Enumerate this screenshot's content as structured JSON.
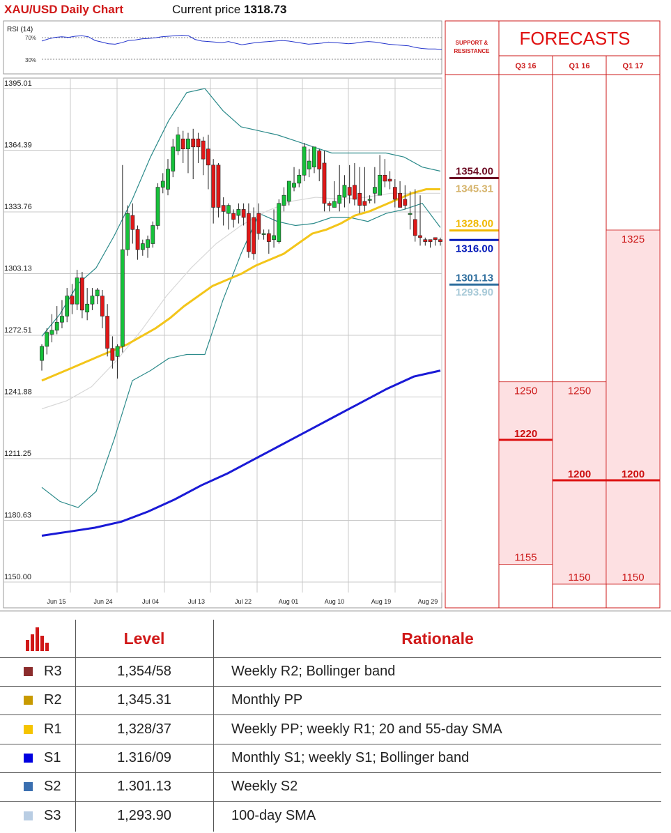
{
  "header": {
    "title": "XAU/USD Daily Chart",
    "price_label": "Current price",
    "price_value": "1318.73"
  },
  "rsi": {
    "label": "RSI (14)",
    "upper_label": "70%",
    "lower_label": "30%",
    "values": [
      62,
      66,
      69,
      70,
      69,
      71,
      72,
      70,
      63,
      60,
      57,
      56,
      59,
      63,
      64,
      66,
      67,
      68,
      70,
      71,
      72,
      73,
      72,
      65,
      62,
      61,
      60,
      59,
      61,
      58,
      55,
      57,
      59,
      60,
      61,
      62,
      63,
      62,
      60,
      58,
      56,
      57,
      58,
      60,
      59,
      58,
      57,
      58,
      60,
      61,
      60,
      58,
      56,
      55,
      54,
      53,
      50,
      48,
      47,
      47,
      46
    ]
  },
  "chart_data": {
    "type": "candlestick",
    "ylim": [
      1150,
      1395
    ],
    "yticks": [
      "1395.01",
      "1364.39",
      "1333.76",
      "1303.13",
      "1272.51",
      "1241.88",
      "1211.25",
      "1180.63",
      "1150.00"
    ],
    "xticks": [
      "Jun 15",
      "Jun 24",
      "Jul 04",
      "Jul 13",
      "Jul 22",
      "Aug 01",
      "Aug 10",
      "Aug 19",
      "Aug 29"
    ],
    "candles": [
      [
        1260,
        1267,
        1255,
        1268
      ],
      [
        1267,
        1274,
        1263,
        1276
      ],
      [
        1273,
        1275,
        1269,
        1283
      ],
      [
        1275,
        1279,
        1273,
        1287
      ],
      [
        1279,
        1282,
        1276,
        1290
      ],
      [
        1282,
        1292,
        1279,
        1296
      ],
      [
        1292,
        1288,
        1283,
        1298
      ],
      [
        1288,
        1301,
        1285,
        1305
      ],
      [
        1301,
        1285,
        1281,
        1304
      ],
      [
        1284,
        1288,
        1280,
        1296
      ],
      [
        1288,
        1292,
        1285,
        1296
      ],
      [
        1292,
        1295,
        1288,
        1296
      ],
      [
        1292,
        1282,
        1276,
        1295
      ],
      [
        1282,
        1266,
        1262,
        1288
      ],
      [
        1266,
        1260,
        1256,
        1272
      ],
      [
        1262,
        1267,
        1251,
        1268
      ],
      [
        1267,
        1315,
        1264,
        1357
      ],
      [
        1315,
        1333,
        1312,
        1337
      ],
      [
        1332,
        1325,
        1318,
        1338
      ],
      [
        1325,
        1315,
        1310,
        1327
      ],
      [
        1315,
        1318,
        1312,
        1320
      ],
      [
        1316,
        1320,
        1311,
        1322
      ],
      [
        1318,
        1327,
        1316,
        1329
      ],
      [
        1327,
        1346,
        1325,
        1348
      ],
      [
        1346,
        1349,
        1343,
        1353
      ],
      [
        1345,
        1355,
        1342,
        1360
      ],
      [
        1354,
        1366,
        1351,
        1370
      ],
      [
        1364,
        1372,
        1362,
        1376
      ],
      [
        1370,
        1365,
        1358,
        1374
      ],
      [
        1365,
        1370,
        1353,
        1373
      ],
      [
        1370,
        1366,
        1350,
        1375
      ],
      [
        1370,
        1366,
        1358,
        1373
      ],
      [
        1369,
        1360,
        1352,
        1371
      ],
      [
        1365,
        1357,
        1345,
        1372
      ],
      [
        1357,
        1336,
        1328,
        1360
      ],
      [
        1357,
        1336,
        1331,
        1358
      ],
      [
        1337,
        1334,
        1327,
        1341
      ],
      [
        1333,
        1337,
        1325,
        1338
      ],
      [
        1333,
        1330,
        1326,
        1335
      ],
      [
        1332,
        1335,
        1328,
        1338
      ],
      [
        1335,
        1331,
        1327,
        1338
      ],
      [
        1333,
        1314,
        1311,
        1338
      ],
      [
        1331,
        1313,
        1310,
        1336
      ],
      [
        1333,
        1323,
        1320,
        1338
      ],
      [
        1323,
        1323,
        1320,
        1325
      ],
      [
        1323,
        1319,
        1313,
        1325
      ],
      [
        1320,
        1322,
        1316,
        1335
      ],
      [
        1319,
        1338,
        1318,
        1340
      ],
      [
        1337,
        1342,
        1334,
        1346
      ],
      [
        1339,
        1349,
        1337,
        1349
      ],
      [
        1346,
        1348,
        1344,
        1356
      ],
      [
        1348,
        1352,
        1346,
        1355
      ],
      [
        1352,
        1366,
        1349,
        1368
      ],
      [
        1355,
        1359,
        1351,
        1365
      ],
      [
        1356,
        1366,
        1353,
        1366
      ],
      [
        1364,
        1355,
        1349,
        1365
      ],
      [
        1358,
        1338,
        1334,
        1364
      ],
      [
        1338,
        1337,
        1334,
        1339
      ],
      [
        1336,
        1339,
        1336,
        1349
      ],
      [
        1338,
        1342,
        1334,
        1357
      ],
      [
        1341,
        1347,
        1336,
        1352
      ],
      [
        1346,
        1342,
        1338,
        1357
      ],
      [
        1347,
        1340,
        1337,
        1358
      ],
      [
        1343,
        1337,
        1333,
        1356
      ],
      [
        1339,
        1337,
        1334,
        1356
      ],
      [
        1340,
        1340,
        1338,
        1342
      ],
      [
        1343,
        1346,
        1338,
        1356
      ],
      [
        1342,
        1352,
        1344,
        1362
      ],
      [
        1352,
        1349,
        1346,
        1360
      ],
      [
        1350,
        1349,
        1345,
        1354
      ],
      [
        1346,
        1340,
        1336,
        1350
      ],
      [
        1343,
        1336,
        1336,
        1349
      ],
      [
        1340,
        1337,
        1335,
        1347
      ],
      [
        1333,
        1333,
        1325,
        1344
      ],
      [
        1330,
        1322,
        1319,
        1345
      ],
      [
        1322,
        1321,
        1317,
        1342
      ],
      [
        1320,
        1319,
        1317,
        1321
      ],
      [
        1320,
        1319,
        1316,
        1320
      ],
      [
        1321,
        1320,
        1317,
        1321
      ],
      [
        1320,
        1319,
        1317,
        1321
      ]
    ],
    "sma_yellow": [
      1250,
      1253,
      1256,
      1259,
      1262,
      1265,
      1268,
      1272,
      1276,
      1281,
      1287,
      1292,
      1297,
      1300,
      1303,
      1307,
      1310,
      1313,
      1318,
      1323,
      1325,
      1328,
      1332,
      1334,
      1337,
      1340,
      1343,
      1345,
      1345
    ],
    "sma_blue": [
      1173,
      1175,
      1177,
      1180,
      1185,
      1191,
      1198,
      1204,
      1211,
      1218,
      1225,
      1232,
      1239,
      1246,
      1252,
      1255
    ],
    "sma_gray": [
      1236,
      1240,
      1247,
      1260,
      1275,
      1292,
      1306,
      1318,
      1327,
      1334,
      1339,
      1341,
      1340,
      1341,
      1343,
      1343,
      1343
    ],
    "boll_upper": [
      1272,
      1283,
      1298,
      1306,
      1322,
      1340,
      1361,
      1379,
      1393,
      1395,
      1384,
      1376,
      1374,
      1372,
      1369,
      1366,
      1363,
      1363,
      1363,
      1363,
      1361,
      1356,
      1354
    ],
    "boll_lower": [
      1197,
      1190,
      1187,
      1195,
      1221,
      1250,
      1255,
      1261,
      1263,
      1263,
      1290,
      1313,
      1333,
      1329,
      1327,
      1328,
      1331,
      1331,
      1329,
      1333,
      1335,
      1338,
      1326
    ]
  },
  "sr": {
    "header": "SUPPORT & RESISTANCE",
    "levels": [
      {
        "label": "1354.00",
        "value": 1354.0,
        "color": "#6b0a22"
      },
      {
        "label": "1345.31",
        "value": 1345.31,
        "color": "#d6b46c"
      },
      {
        "label": "1328.00",
        "value": 1328.0,
        "color": "#f0b800"
      },
      {
        "label": "1316.00",
        "value": 1316.0,
        "color": "#0018b8"
      },
      {
        "label": "1301.13",
        "value": 1301.13,
        "color": "#2e6e9e"
      },
      {
        "label": "1293.90",
        "value": 1293.9,
        "color": "#a8cad8"
      }
    ]
  },
  "forecasts": {
    "title": "FORECASTS",
    "columns": [
      {
        "label": "Q3 16",
        "top": "1250",
        "mid": "1220",
        "bottom": "1155",
        "top_v": 1250,
        "mid_v": 1220,
        "bot_v": 1155
      },
      {
        "label": "Q1 16",
        "top": "1250",
        "mid": "1200",
        "bottom": "1150",
        "top_v": 1250,
        "mid_v": 1200,
        "bot_v": 1150
      },
      {
        "label": "Q1 17",
        "top": "1325",
        "mid": "1200",
        "bottom": "1150",
        "top_v": 1325,
        "mid_v": 1200,
        "bot_v": 1150
      }
    ]
  },
  "table": {
    "header_level": "Level",
    "header_rationale": "Rationale",
    "rows": [
      {
        "name": "R3",
        "level": "1,354/58",
        "rationale": "Weekly R2; Bollinger band",
        "color": "#8b2c2c"
      },
      {
        "name": "R2",
        "level": "1,345.31",
        "rationale": "Monthly PP",
        "color": "#c89a00"
      },
      {
        "name": "R1",
        "level": "1,328/37",
        "rationale": "Weekly PP; weekly R1; 20 and 55-day SMA",
        "color": "#f5c400"
      },
      {
        "name": "S1",
        "level": "1.316/09",
        "rationale": "Monthly S1; weekly S1; Bollinger band",
        "color": "#0000e0"
      },
      {
        "name": "S2",
        "level": "1.301.13",
        "rationale": "Weekly S2",
        "color": "#3a6fb0"
      },
      {
        "name": "S3",
        "level": "1,293.90",
        "rationale": "100-day SMA",
        "color": "#b9cde3"
      }
    ]
  }
}
